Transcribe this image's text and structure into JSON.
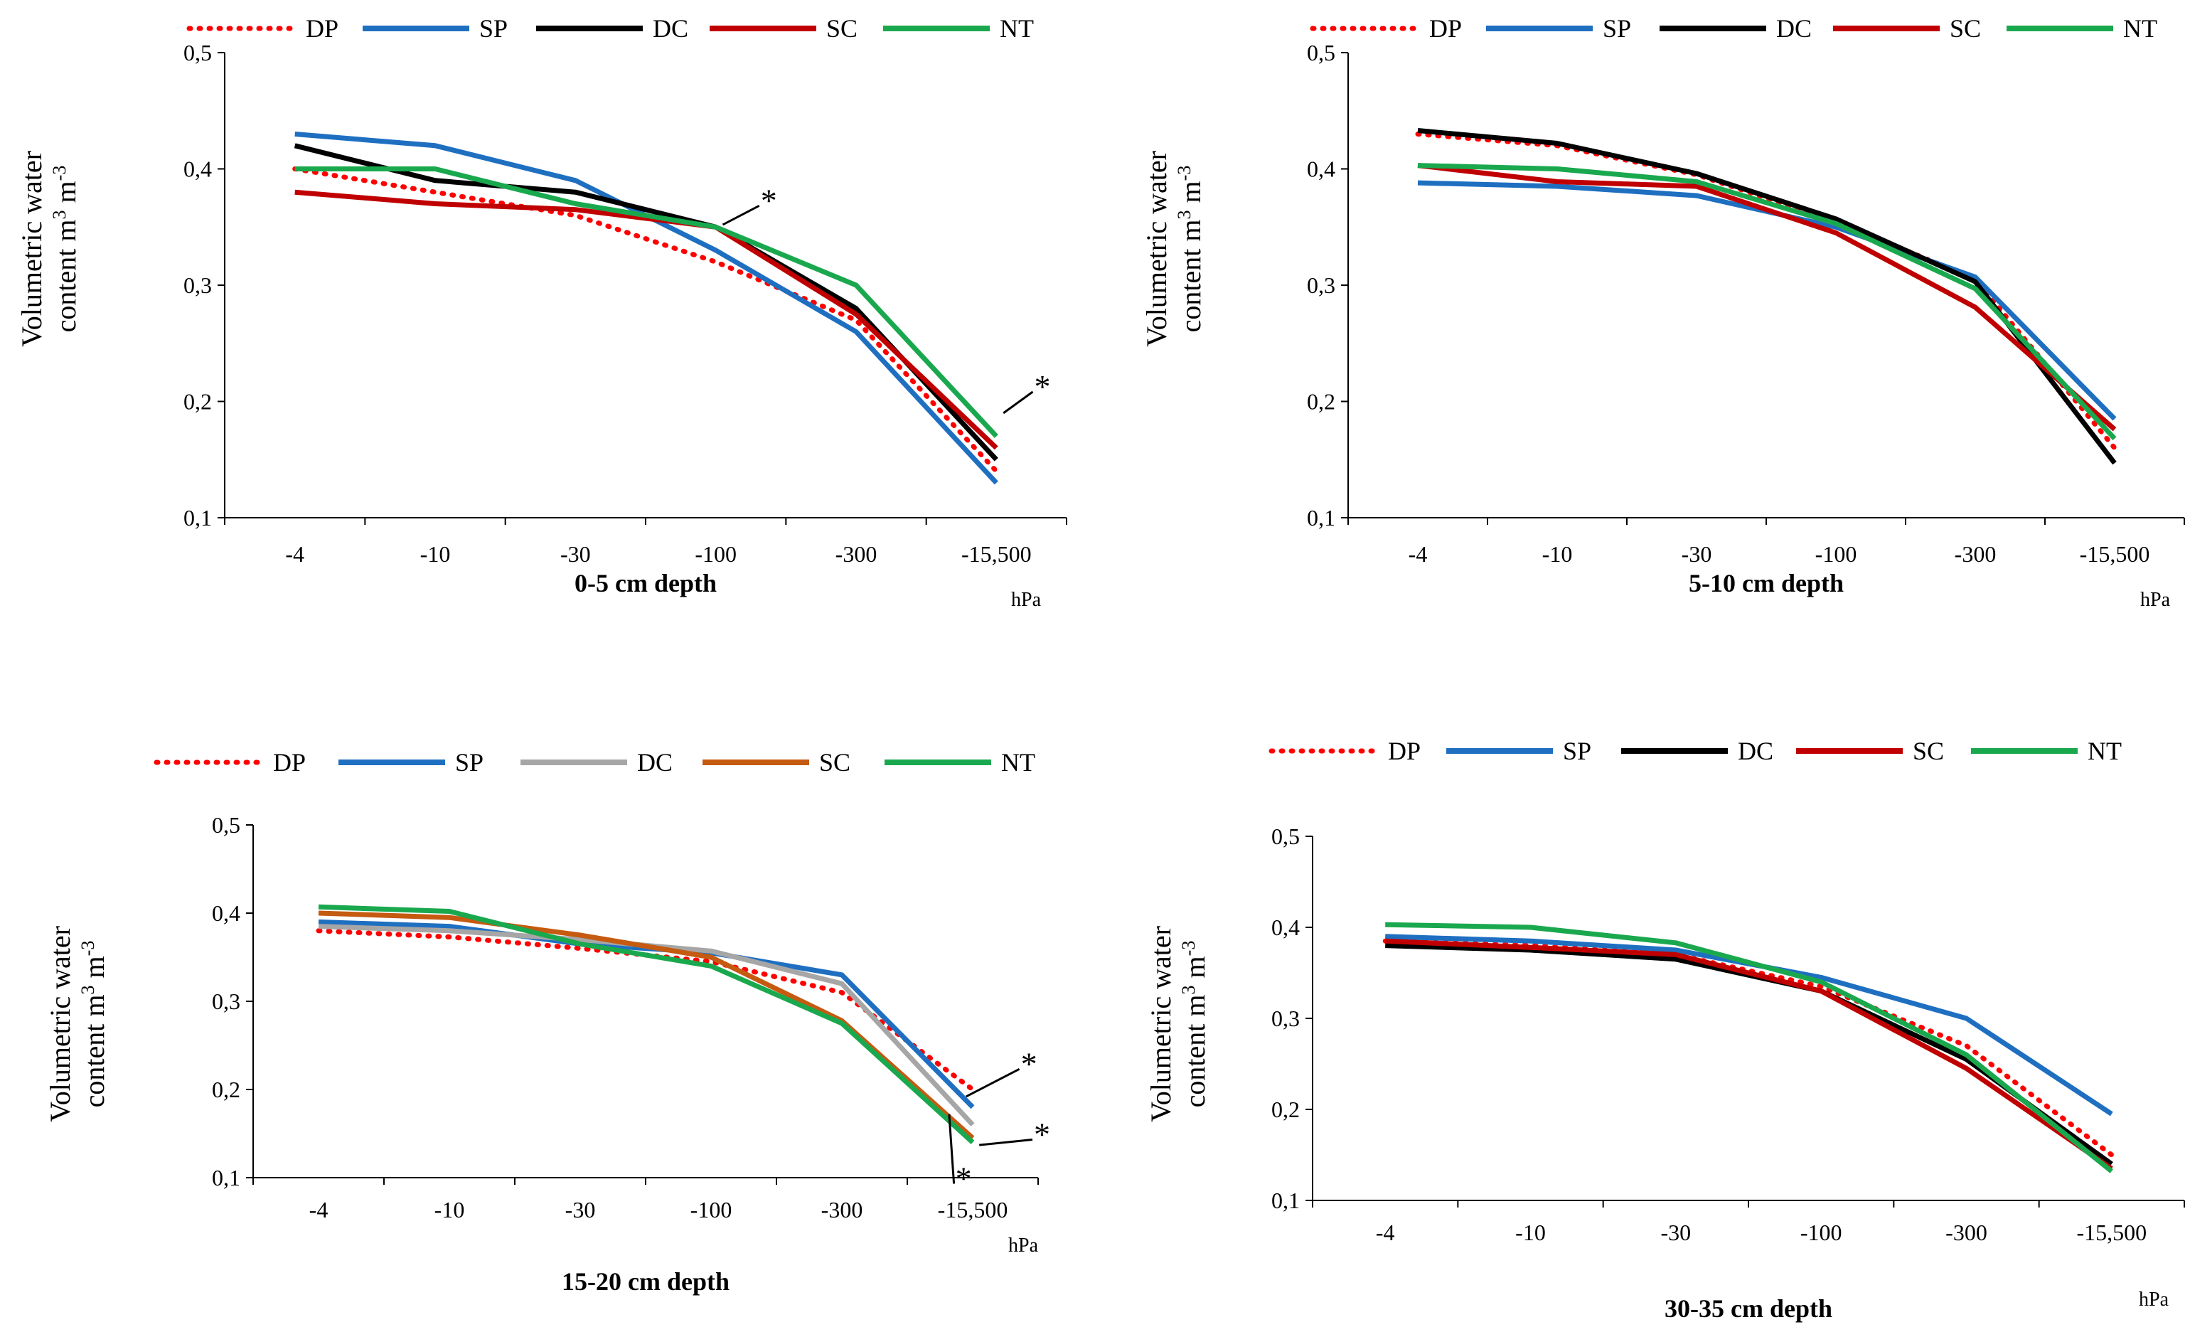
{
  "chart_data": [
    {
      "type": "line",
      "title": "0-5 cm depth",
      "xlabel": "0-5 cm depth",
      "unit_label": "hPa",
      "ylabel_line1": "Volumetric water",
      "ylabel_line2": "content m",
      "ylabel_sup1": "3",
      "ylabel_mid": " m",
      "ylabel_sup2": "-3",
      "categories": [
        "-4",
        "-10",
        "-30",
        "-100",
        "-300",
        "-15,500"
      ],
      "yticks": [
        "0,1",
        "0,2",
        "0,3",
        "0,4",
        "0,5"
      ],
      "ylim": [
        0.1,
        0.5
      ],
      "legend_position": "top",
      "series": [
        {
          "name": "DP",
          "color": "#ff0000",
          "style": "dotted",
          "values": [
            0.4,
            0.38,
            0.36,
            0.32,
            0.27,
            0.14
          ]
        },
        {
          "name": "SP",
          "color": "#1f6fc1",
          "style": "solid",
          "values": [
            0.43,
            0.42,
            0.39,
            0.33,
            0.26,
            0.13
          ]
        },
        {
          "name": "DC",
          "color": "#000000",
          "style": "solid",
          "values": [
            0.42,
            0.39,
            0.38,
            0.35,
            0.28,
            0.15
          ]
        },
        {
          "name": "SC",
          "color": "#c00000",
          "style": "solid",
          "values": [
            0.38,
            0.37,
            0.365,
            0.35,
            0.275,
            0.16
          ]
        },
        {
          "name": "NT",
          "color": "#1aa84e",
          "style": "solid",
          "values": [
            0.4,
            0.4,
            0.37,
            0.35,
            0.3,
            0.17
          ]
        }
      ],
      "annotations": [
        {
          "text": "*",
          "x_index": 3.35,
          "y": 0.372,
          "from_x_index": 3.05,
          "from_y": 0.352
        },
        {
          "text": "*",
          "x_index": 5.3,
          "y": 0.212,
          "from_x_index": 5.05,
          "from_y": 0.19
        }
      ]
    },
    {
      "type": "line",
      "title": "5-10 cm depth",
      "xlabel": "5-10 cm depth",
      "unit_label": "hPa",
      "ylabel_line1": "Volumetric water",
      "ylabel_line2": "content m",
      "ylabel_sup1": "3",
      "ylabel_mid": " m",
      "ylabel_sup2": "-3",
      "categories": [
        "-4",
        "-10",
        "-30",
        "-100",
        "-300",
        "-15,500"
      ],
      "yticks": [
        "0,1",
        "0,2",
        "0,3",
        "0,4",
        "0,5"
      ],
      "ylim": [
        0.1,
        0.5
      ],
      "legend_position": "top",
      "series": [
        {
          "name": "DP",
          "color": "#ff0000",
          "style": "dotted",
          "values": [
            0.43,
            0.42,
            0.395,
            0.355,
            0.305,
            0.16
          ]
        },
        {
          "name": "SP",
          "color": "#1f6fc1",
          "style": "solid",
          "values": [
            0.388,
            0.385,
            0.377,
            0.35,
            0.307,
            0.185
          ]
        },
        {
          "name": "DC",
          "color": "#000000",
          "style": "solid",
          "values": [
            0.433,
            0.422,
            0.396,
            0.357,
            0.303,
            0.147
          ]
        },
        {
          "name": "SC",
          "color": "#c00000",
          "style": "solid",
          "values": [
            0.403,
            0.389,
            0.385,
            0.345,
            0.281,
            0.176
          ]
        },
        {
          "name": "NT",
          "color": "#1aa84e",
          "style": "solid",
          "values": [
            0.403,
            0.4,
            0.389,
            0.353,
            0.297,
            0.168
          ]
        }
      ],
      "annotations": []
    },
    {
      "type": "line",
      "title": "15-20 cm depth",
      "xlabel": "15-20 cm depth",
      "unit_label": "hPa",
      "ylabel_line1": "Volumetric water",
      "ylabel_line2": "content m",
      "ylabel_sup1": "3",
      "ylabel_mid": " m",
      "ylabel_sup2": "-3",
      "categories": [
        "-4",
        "-10",
        "-30",
        "-100",
        "-300",
        "-15,500"
      ],
      "yticks": [
        "0,1",
        "0,2",
        "0,3",
        "0,4",
        "0,5"
      ],
      "ylim": [
        0.1,
        0.5
      ],
      "legend_position": "top",
      "series": [
        {
          "name": "DP",
          "color": "#ff0000",
          "style": "dotted",
          "values": [
            0.38,
            0.373,
            0.36,
            0.345,
            0.31,
            0.2
          ]
        },
        {
          "name": "SP",
          "color": "#1f6fc1",
          "style": "solid",
          "values": [
            0.39,
            0.385,
            0.365,
            0.355,
            0.33,
            0.18
          ]
        },
        {
          "name": "DC",
          "color": "#a6a6a6",
          "style": "solid",
          "values": [
            0.385,
            0.38,
            0.37,
            0.357,
            0.32,
            0.16
          ]
        },
        {
          "name": "SC",
          "color": "#c55a11",
          "style": "solid",
          "values": [
            0.4,
            0.395,
            0.375,
            0.35,
            0.278,
            0.145
          ]
        },
        {
          "name": "NT",
          "color": "#1aa84e",
          "style": "solid",
          "values": [
            0.407,
            0.402,
            0.365,
            0.34,
            0.275,
            0.14
          ]
        }
      ],
      "annotations": [
        {
          "text": "*",
          "x_index": 5.4,
          "y": 0.228,
          "from_x_index": 4.95,
          "from_y": 0.192
        },
        {
          "text": "*",
          "x_index": 5.5,
          "y": 0.148,
          "from_x_index": 5.05,
          "from_y": 0.137
        },
        {
          "text": "*",
          "x_index": 4.9,
          "y": 0.098,
          "from_x_index": 4.82,
          "from_y": 0.172
        }
      ]
    },
    {
      "type": "line",
      "title": "30-35 cm depth",
      "xlabel": "30-35 cm depth",
      "unit_label": "hPa",
      "ylabel_line1": "Volumetric water",
      "ylabel_line2": "content m",
      "ylabel_sup1": "3",
      "ylabel_mid": " m",
      "ylabel_sup2": "-3",
      "categories": [
        "-4",
        "-10",
        "-30",
        "-100",
        "-300",
        "-15,500"
      ],
      "yticks": [
        "0,1",
        "0,2",
        "0,3",
        "0,4",
        "0,5"
      ],
      "ylim": [
        0.1,
        0.5
      ],
      "legend_position": "top",
      "series": [
        {
          "name": "DP",
          "color": "#ff0000",
          "style": "dotted",
          "values": [
            0.385,
            0.38,
            0.37,
            0.335,
            0.27,
            0.15
          ]
        },
        {
          "name": "SP",
          "color": "#1f6fc1",
          "style": "solid",
          "values": [
            0.39,
            0.385,
            0.375,
            0.345,
            0.3,
            0.195
          ]
        },
        {
          "name": "DC",
          "color": "#000000",
          "style": "solid",
          "values": [
            0.38,
            0.375,
            0.365,
            0.33,
            0.255,
            0.14
          ]
        },
        {
          "name": "SC",
          "color": "#c00000",
          "style": "solid",
          "values": [
            0.385,
            0.378,
            0.37,
            0.33,
            0.245,
            0.135
          ]
        },
        {
          "name": "NT",
          "color": "#1aa84e",
          "style": "solid",
          "values": [
            0.403,
            0.4,
            0.383,
            0.34,
            0.26,
            0.132
          ]
        }
      ],
      "annotations": []
    }
  ]
}
